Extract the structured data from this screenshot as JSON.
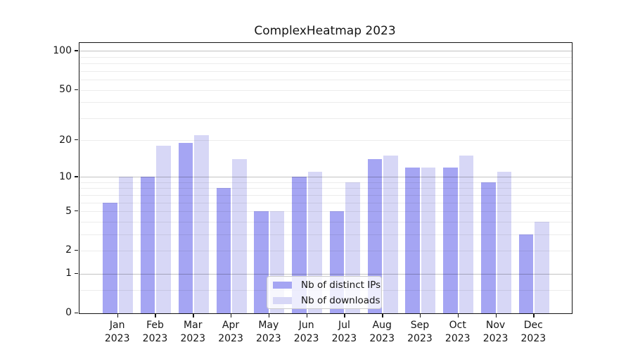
{
  "chart_data": {
    "type": "bar",
    "title": "ComplexHeatmap 2023",
    "categories": [
      "Jan 2023",
      "Feb 2023",
      "Mar 2023",
      "Apr 2023",
      "May 2023",
      "Jun 2023",
      "Jul 2023",
      "Aug 2023",
      "Sep 2023",
      "Oct 2023",
      "Nov 2023",
      "Dec 2023"
    ],
    "series": [
      {
        "name": "Nb of distinct IPs",
        "color": "#a5a5f3",
        "values": [
          6,
          10,
          19,
          8,
          5,
          10,
          5,
          14,
          12,
          12,
          9,
          3
        ]
      },
      {
        "name": "Nb of downloads",
        "color": "#d7d7f6",
        "values": [
          10,
          18,
          22,
          14,
          5,
          11,
          9,
          15,
          12,
          15,
          11,
          4
        ]
      }
    ],
    "y_scale": "log1p",
    "ylim": [
      0,
      115
    ],
    "y_ticks": [
      100,
      50,
      20,
      10,
      5,
      2,
      1,
      0
    ],
    "y_major_gridlines": [
      1,
      10,
      100
    ],
    "y_minor_gridlines": [
      0.5,
      2,
      3,
      4,
      5,
      6,
      7,
      8,
      9,
      20,
      30,
      40,
      50,
      60,
      70,
      80,
      90
    ],
    "grid": true,
    "legend_position": "lower center",
    "colors": {
      "bar_dark": "#a5a5f3",
      "bar_light": "#d7d7f6",
      "spine": "#151515",
      "grid_major": "#c3c3c3",
      "grid_minor": "#ececec",
      "text": "#151515",
      "legend_border": "#cbcbcb"
    }
  }
}
